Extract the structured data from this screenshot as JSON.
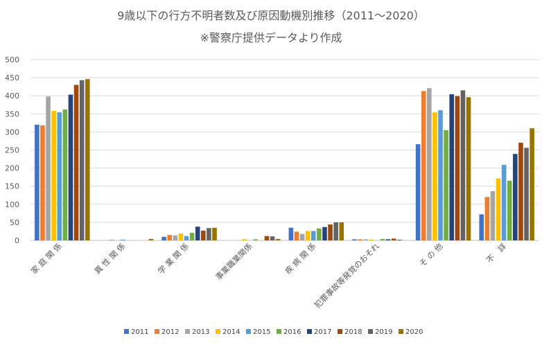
{
  "chart_data": {
    "type": "bar",
    "title": "9歳以下の行方不明者数及び原因動機別推移（2011〜2020）",
    "subtitle": "※警察庁提供データより作成",
    "xlabel": "",
    "ylabel": "",
    "ylim": [
      0,
      500
    ],
    "yticks": [
      "0",
      "50",
      "100",
      "150",
      "200",
      "250",
      "300",
      "350",
      "400",
      "450",
      "500"
    ],
    "grid": true,
    "legend_position": "bottom",
    "categories": [
      "家 庭 関 係",
      "異 性 関 係",
      "学 業 関 係",
      "事業職業関係",
      "疾 病 関 係",
      "犯罪事故等発覚のおそれ",
      "そ の 他",
      "不　詳"
    ],
    "series": [
      {
        "name": "2011",
        "color": "#4472C4",
        "values": [
          320,
          0,
          10,
          0,
          35,
          3,
          266,
          72
        ]
      },
      {
        "name": "2012",
        "color": "#ED7D31",
        "values": [
          318,
          0,
          15,
          0,
          24,
          3,
          413,
          120
        ]
      },
      {
        "name": "2013",
        "color": "#A5A5A5",
        "values": [
          398,
          2,
          14,
          0,
          18,
          3,
          421,
          136
        ]
      },
      {
        "name": "2014",
        "color": "#FFC000",
        "values": [
          358,
          0,
          19,
          3,
          26,
          2,
          354,
          171
        ]
      },
      {
        "name": "2015",
        "color": "#5B9BD5",
        "values": [
          354,
          2,
          12,
          0,
          26,
          0,
          360,
          209
        ]
      },
      {
        "name": "2016",
        "color": "#70AD47",
        "values": [
          362,
          0,
          21,
          3,
          33,
          4,
          305,
          165
        ]
      },
      {
        "name": "2017",
        "color": "#264478",
        "values": [
          403,
          0,
          38,
          0,
          37,
          3,
          404,
          239
        ]
      },
      {
        "name": "2018",
        "color": "#9E480E",
        "values": [
          430,
          0,
          27,
          12,
          44,
          5,
          399,
          270
        ]
      },
      {
        "name": "2019",
        "color": "#636363",
        "values": [
          443,
          0,
          34,
          11,
          50,
          2,
          415,
          256
        ]
      },
      {
        "name": "2020",
        "color": "#997300",
        "values": [
          446,
          4,
          35,
          4,
          50,
          0,
          396,
          310
        ]
      }
    ]
  }
}
